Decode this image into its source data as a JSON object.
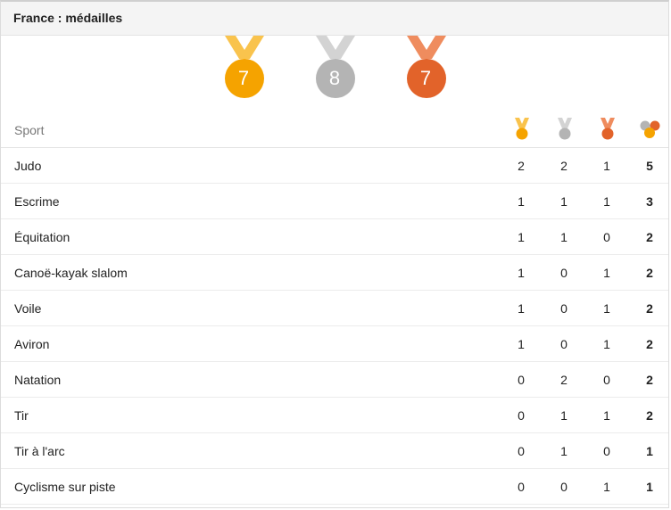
{
  "header": {
    "title": "France : médailles"
  },
  "totals": {
    "gold": {
      "count": "7",
      "icon": "gold-medal-icon",
      "color": "#f5a300",
      "ribbon": "#f9c34d"
    },
    "silver": {
      "count": "8",
      "icon": "silver-medal-icon",
      "color": "#b4b4b4",
      "ribbon": "#d3d3d3"
    },
    "bronze": {
      "count": "7",
      "icon": "bronze-medal-icon",
      "color": "#e2632a",
      "ribbon": "#ef8c5e"
    }
  },
  "table": {
    "sport_header": "Sport",
    "column_icons": [
      "gold-medal-icon",
      "silver-medal-icon",
      "bronze-medal-icon",
      "total-medals-icon"
    ],
    "rows": [
      {
        "sport": "Judo",
        "gold": "2",
        "silver": "2",
        "bronze": "1",
        "total": "5"
      },
      {
        "sport": "Escrime",
        "gold": "1",
        "silver": "1",
        "bronze": "1",
        "total": "3"
      },
      {
        "sport": "Équitation",
        "gold": "1",
        "silver": "1",
        "bronze": "0",
        "total": "2"
      },
      {
        "sport": "Canoë-kayak slalom",
        "gold": "1",
        "silver": "0",
        "bronze": "1",
        "total": "2"
      },
      {
        "sport": "Voile",
        "gold": "1",
        "silver": "0",
        "bronze": "1",
        "total": "2"
      },
      {
        "sport": "Aviron",
        "gold": "1",
        "silver": "0",
        "bronze": "1",
        "total": "2"
      },
      {
        "sport": "Natation",
        "gold": "0",
        "silver": "2",
        "bronze": "0",
        "total": "2"
      },
      {
        "sport": "Tir",
        "gold": "0",
        "silver": "1",
        "bronze": "1",
        "total": "2"
      },
      {
        "sport": "Tir à l'arc",
        "gold": "0",
        "silver": "1",
        "bronze": "0",
        "total": "1"
      },
      {
        "sport": "Cyclisme sur piste",
        "gold": "0",
        "silver": "0",
        "bronze": "1",
        "total": "1"
      }
    ]
  }
}
